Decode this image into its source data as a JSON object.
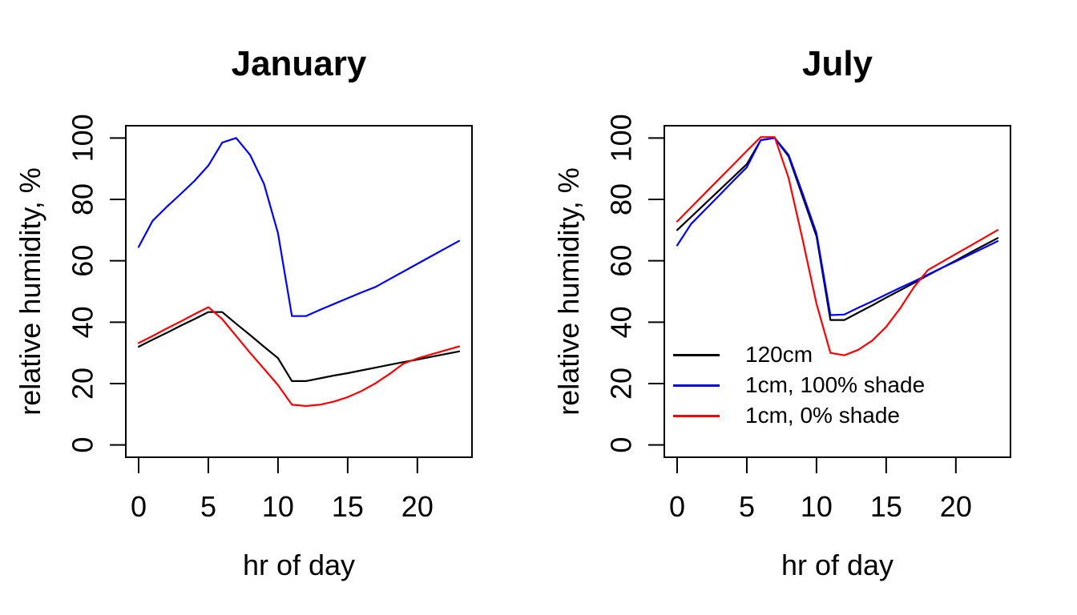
{
  "figure": {
    "background": "#ffffff",
    "text_color": "#000000"
  },
  "chart_data": [
    {
      "type": "line",
      "title": "January",
      "xlabel": "hr of day",
      "ylabel": "relative humidity, %",
      "xlim": [
        0,
        23
      ],
      "ylim": [
        0,
        100
      ],
      "xticks": [
        0,
        5,
        10,
        15,
        20
      ],
      "yticks": [
        0,
        20,
        40,
        60,
        80,
        100
      ],
      "grid": false,
      "legend": null,
      "x": [
        0,
        1,
        2,
        3,
        4,
        5,
        6,
        7,
        8,
        9,
        10,
        11,
        12,
        13,
        14,
        15,
        16,
        17,
        18,
        19,
        20,
        21,
        22,
        23
      ],
      "series": [
        {
          "name": "120cm",
          "color": "#000000",
          "values": [
            32,
            34.3,
            36.5,
            38.8,
            41,
            43.3,
            43.3,
            39.5,
            35.8,
            32,
            28.3,
            20.8,
            20.8,
            21.7,
            22.6,
            23.4,
            24.3,
            25.2,
            26.1,
            27,
            27.8,
            28.7,
            29.6,
            30.5
          ]
        },
        {
          "name": "1cm, 100% shade",
          "color": "#0000ff",
          "values": [
            64.5,
            73,
            77.5,
            81.7,
            86,
            91,
            98.5,
            100,
            94.5,
            85,
            69,
            42,
            42,
            44,
            45.9,
            47.8,
            49.7,
            51.5,
            54,
            56.5,
            59,
            61.5,
            64,
            66.5
          ]
        },
        {
          "name": "1cm, 0% shade",
          "color": "#ff0000",
          "values": [
            33.2,
            35.5,
            37.9,
            40.2,
            42.6,
            44.9,
            41,
            35.5,
            30,
            24.8,
            19.5,
            13.1,
            12.7,
            13.1,
            14.1,
            15.6,
            17.6,
            20.1,
            23.1,
            26.5,
            28.2,
            29.5,
            30.8,
            32.1
          ]
        }
      ]
    },
    {
      "type": "line",
      "title": "July",
      "xlabel": "hr of day",
      "ylabel": "relative humidity, %",
      "xlim": [
        0,
        23
      ],
      "ylim": [
        0,
        100
      ],
      "xticks": [
        0,
        5,
        10,
        15,
        20
      ],
      "yticks": [
        0,
        20,
        40,
        60,
        80,
        100
      ],
      "grid": false,
      "legend": {
        "position": "inside-left-middle",
        "entries": [
          "120cm",
          "1cm, 100% shade",
          "1cm, 0% shade"
        ]
      },
      "x": [
        0,
        1,
        2,
        3,
        4,
        5,
        6,
        7,
        8,
        9,
        10,
        11,
        12,
        13,
        14,
        15,
        16,
        17,
        18,
        19,
        20,
        21,
        22,
        23
      ],
      "series": [
        {
          "name": "120cm",
          "color": "#000000",
          "values": [
            70,
            74.3,
            78.6,
            82.9,
            87.2,
            91.5,
            99.3,
            100,
            94,
            81,
            68,
            40.7,
            40.7,
            43.1,
            45.5,
            48,
            50.4,
            52.8,
            55.3,
            57.7,
            60.1,
            62.6,
            65,
            67.4
          ]
        },
        {
          "name": "1cm, 100% shade",
          "color": "#0000ff",
          "values": [
            65,
            72,
            76.6,
            81.2,
            85.9,
            90.5,
            99.3,
            100,
            94.5,
            82,
            69,
            42.3,
            42.5,
            44.7,
            46.8,
            49,
            51.2,
            53.3,
            55.5,
            57.7,
            59.8,
            62,
            64.2,
            66.4
          ]
        },
        {
          "name": "1cm, 0% shade",
          "color": "#ff0000",
          "values": [
            72.8,
            77.4,
            82,
            86.6,
            91.2,
            95.8,
            100.3,
            100.3,
            87,
            67,
            46,
            30,
            29.2,
            31,
            34,
            38.5,
            44.5,
            51.5,
            57,
            59.6,
            62.2,
            64.8,
            67.4,
            70
          ]
        }
      ]
    }
  ]
}
